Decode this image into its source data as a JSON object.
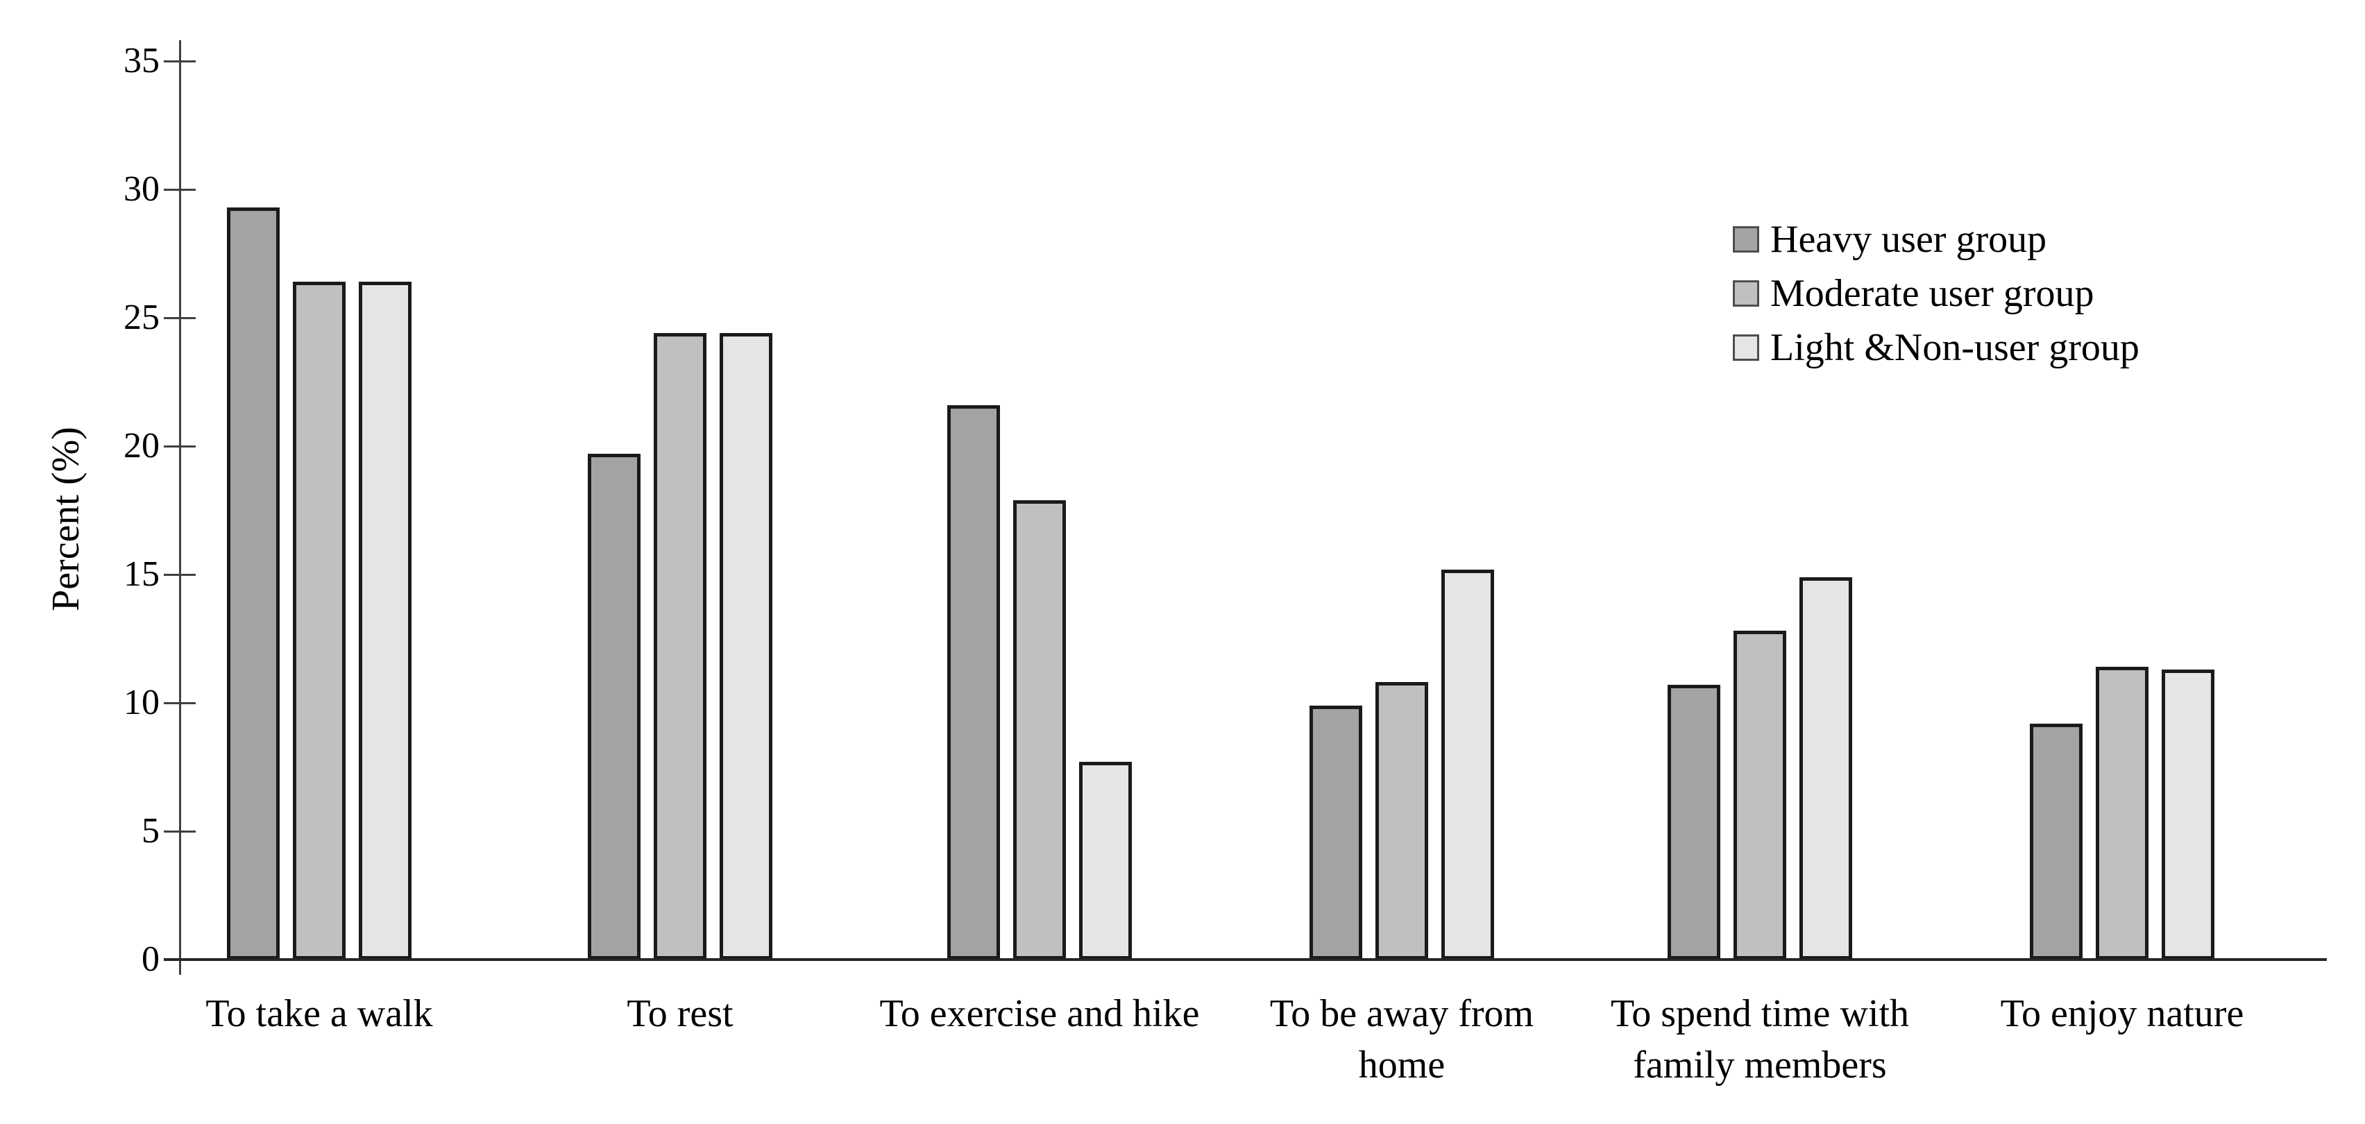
{
  "page": {
    "background": "#ffffff"
  },
  "chart_data": {
    "type": "bar",
    "title": "",
    "xlabel": "",
    "ylabel": "Percent (%)",
    "ylim": [
      0,
      35
    ],
    "y_ticks": [
      0,
      5,
      10,
      15,
      20,
      25,
      30,
      35
    ],
    "grid": false,
    "legend_position": "top-right",
    "categories": [
      "To take a walk",
      "To rest",
      "To exercise and hike",
      "To be away from home",
      "To spend time with family members",
      "To enjoy nature"
    ],
    "series": [
      {
        "name": "Heavy user group",
        "color": "#a3a3a3",
        "values": [
          29.3,
          19.7,
          21.6,
          9.9,
          10.7,
          9.2
        ]
      },
      {
        "name": "Moderate user group",
        "color": "#c0c0c0",
        "values": [
          26.4,
          24.4,
          17.9,
          10.8,
          12.8,
          11.4
        ]
      },
      {
        "name": "Light &Non-user group",
        "color": "#e5e5e5",
        "values": [
          26.4,
          24.4,
          7.7,
          15.2,
          14.9,
          11.3
        ]
      }
    ],
    "bar_border_color": "#1a1a1a",
    "axis_color": "#404040"
  }
}
